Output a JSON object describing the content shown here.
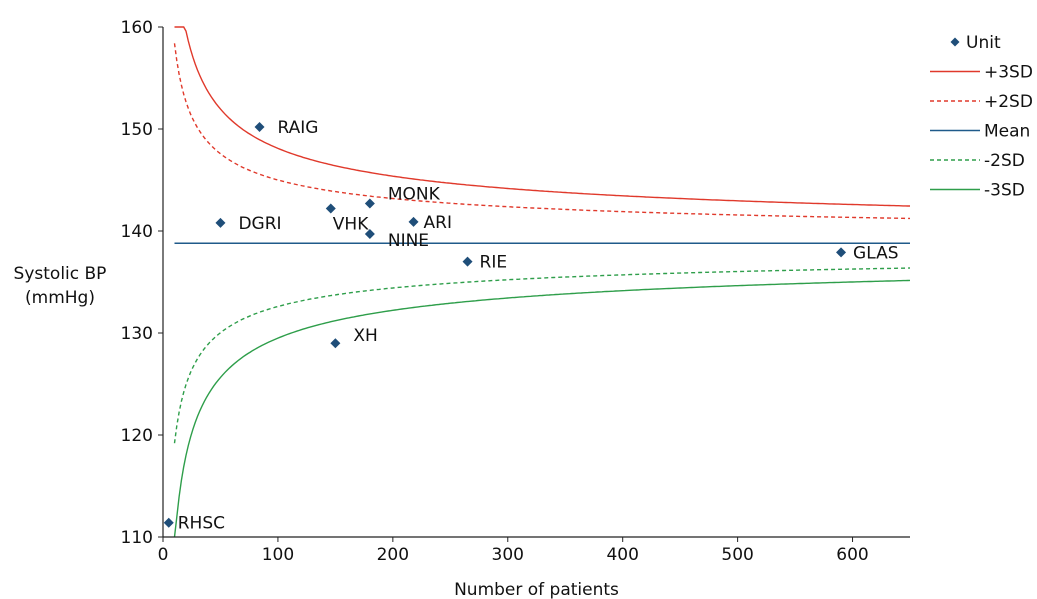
{
  "chart_data": {
    "type": "scatter",
    "title": "",
    "xlabel": "Number of patients",
    "ylabel_lines": [
      "Systolic BP",
      "(mmHg)"
    ],
    "xlim": [
      0,
      650
    ],
    "ylim": [
      110,
      160
    ],
    "x_ticks": [
      0,
      100,
      200,
      300,
      400,
      500,
      600
    ],
    "y_ticks": [
      110,
      120,
      130,
      140,
      150,
      160
    ],
    "grid": false,
    "legend_position": "right",
    "mean": 138.8,
    "colors": {
      "unit": "#1f4e79",
      "sd3_upper": "#e0392b",
      "sd2_upper": "#e0392b",
      "mean": "#1f5a8a",
      "sd2_lower": "#2e9e4a",
      "sd3_lower": "#2e9e4a"
    },
    "legend": [
      {
        "key": "unit",
        "label": "Unit",
        "style": "marker"
      },
      {
        "key": "sd3_upper",
        "label": "+3SD",
        "style": "solid"
      },
      {
        "key": "sd2_upper",
        "label": "+2SD",
        "style": "dashed"
      },
      {
        "key": "mean",
        "label": "Mean",
        "style": "solid"
      },
      {
        "key": "sd2_lower",
        "label": "-2SD",
        "style": "dashed"
      },
      {
        "key": "sd3_lower",
        "label": "-3SD",
        "style": "solid"
      }
    ],
    "units": [
      {
        "name": "RAIG",
        "x": 84,
        "y": 150.2
      },
      {
        "name": "DGRI",
        "x": 50,
        "y": 140.8
      },
      {
        "name": "VHK",
        "x": 146,
        "y": 142.2
      },
      {
        "name": "MONK",
        "x": 180,
        "y": 142.7
      },
      {
        "name": "ARI",
        "x": 218,
        "y": 140.9
      },
      {
        "name": "NINE",
        "x": 180,
        "y": 139.7
      },
      {
        "name": "RIE",
        "x": 265,
        "y": 137.0
      },
      {
        "name": "GLAS",
        "x": 590,
        "y": 137.9
      },
      {
        "name": "XH",
        "x": 150,
        "y": 129.0
      },
      {
        "name": "RHSC",
        "x": 5,
        "y": 111.4
      }
    ]
  }
}
